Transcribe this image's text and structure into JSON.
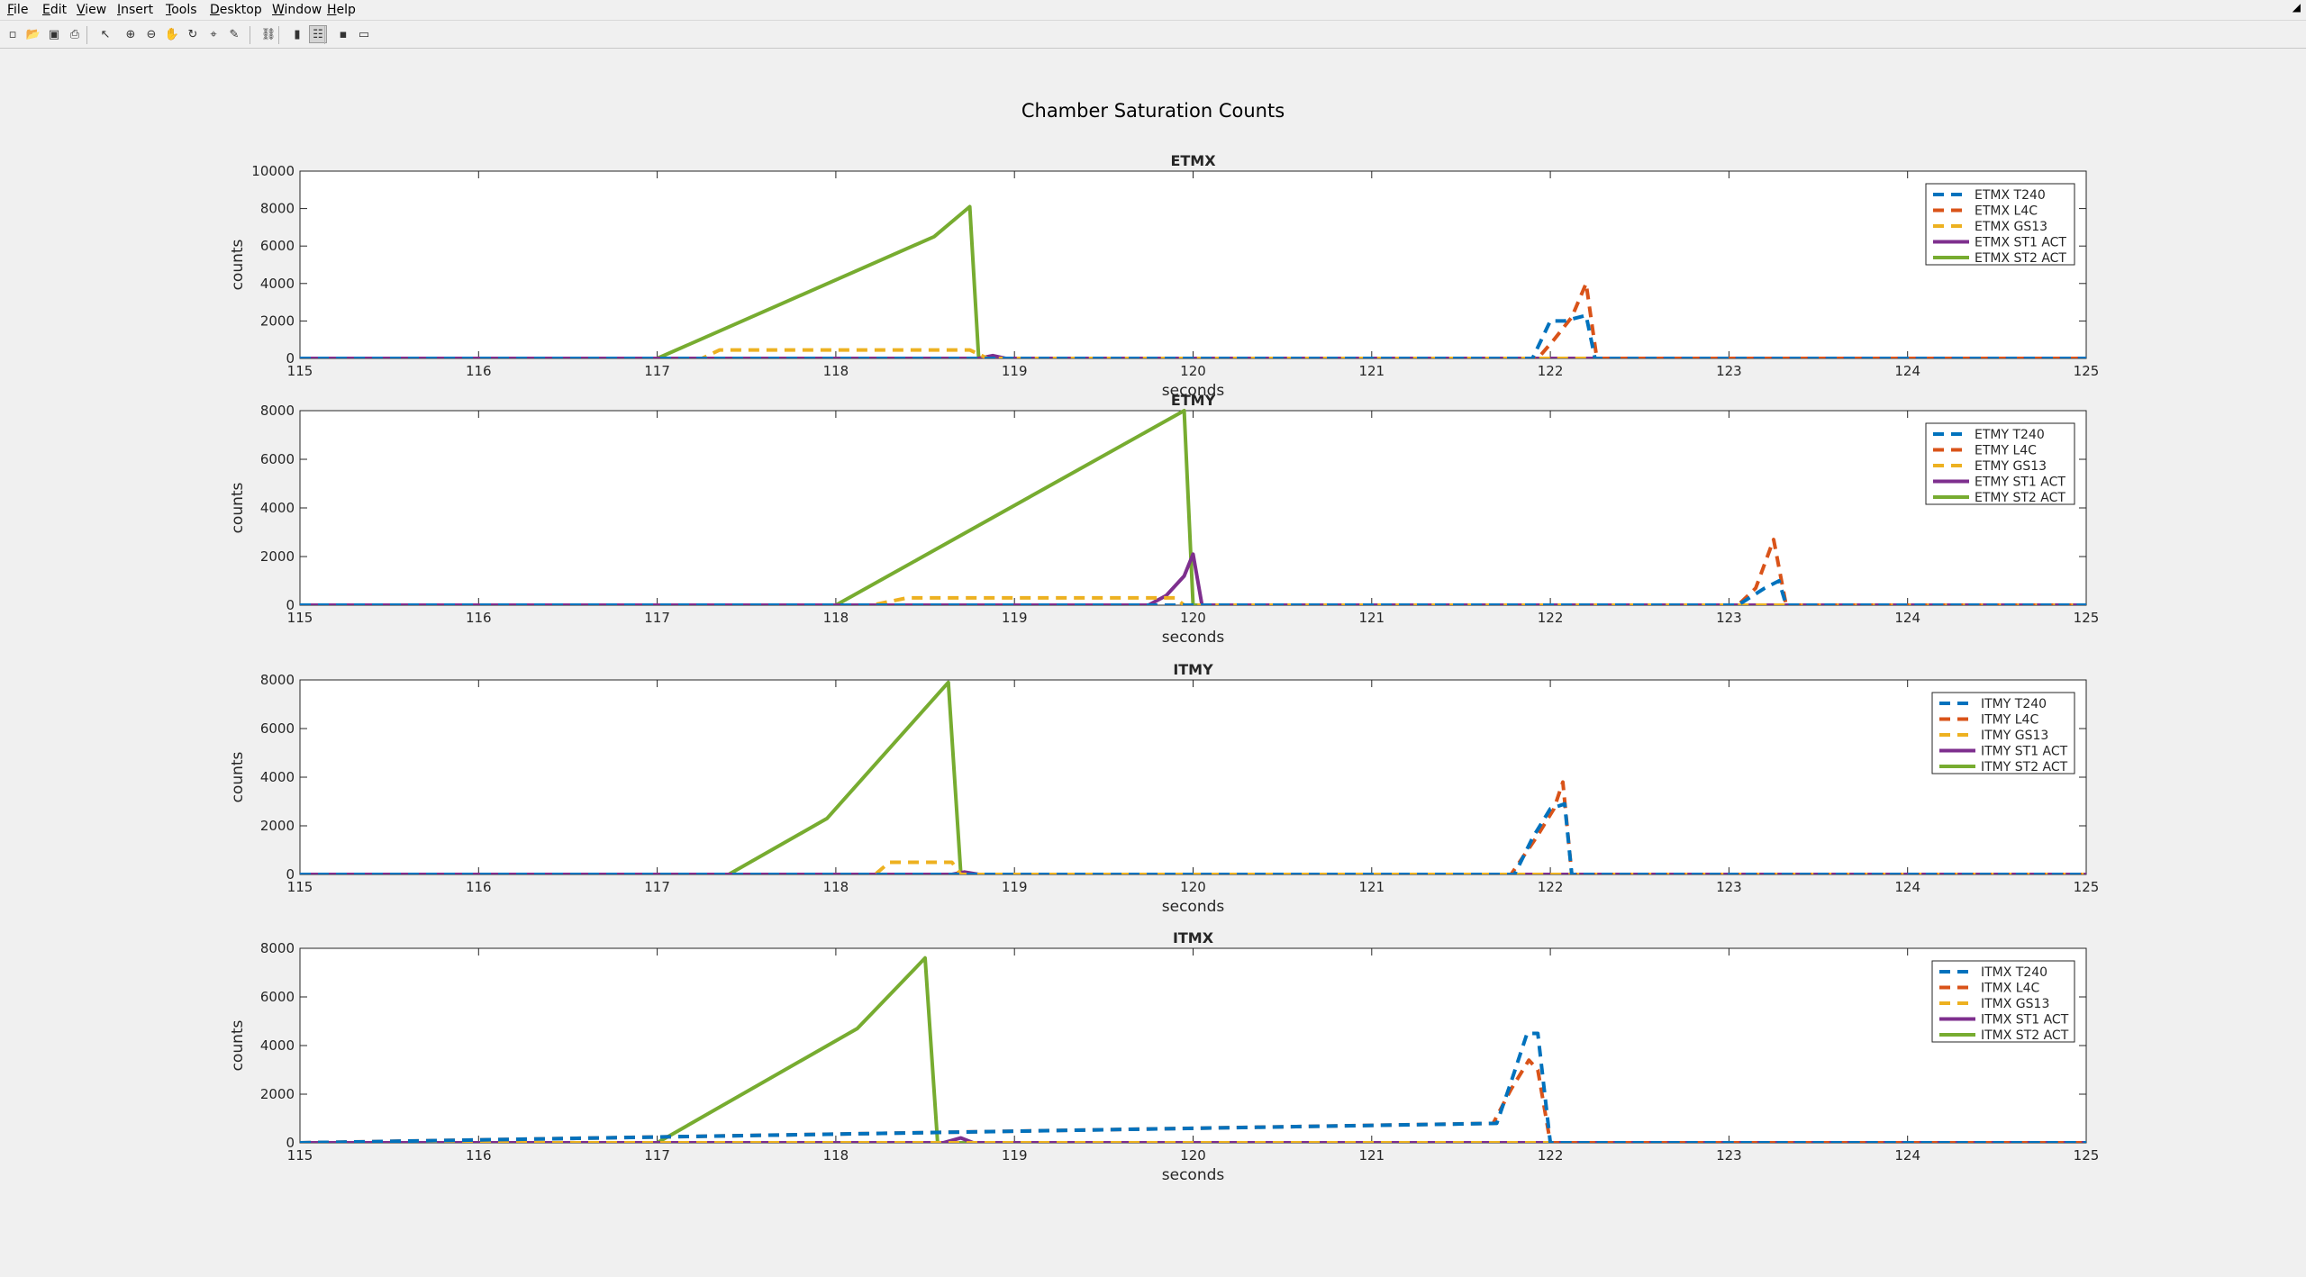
{
  "menubar": {
    "items": [
      "File",
      "Edit",
      "View",
      "Insert",
      "Tools",
      "Desktop",
      "Window",
      "Help"
    ],
    "dock_arrow": "◢"
  },
  "toolbar": {
    "icons": [
      "new-figure-icon",
      "open-file-icon",
      "save-icon",
      "print-icon",
      "pointer-icon",
      "zoom-in-icon",
      "zoom-out-icon",
      "pan-icon",
      "rotate-icon",
      "data-cursor-icon",
      "brush-icon",
      "link-plot-icon",
      "colorbar-icon",
      "legend-icon",
      "hide-tools-icon",
      "show-tools-icon"
    ],
    "glyphs": [
      "▫",
      "📂",
      "▣",
      "⎙",
      "↖",
      "⊕",
      "⊖",
      "✋",
      "↻",
      "⌖",
      "✎",
      "⛓",
      "▮",
      "☷",
      "▪",
      "▭"
    ]
  },
  "figure": {
    "title": "Chamber Saturation Counts"
  },
  "chart_data": [
    {
      "type": "line",
      "title": "ETMX",
      "xlabel": "seconds",
      "ylabel": "counts",
      "xlim": [
        115,
        125
      ],
      "ylim": [
        0,
        10000
      ],
      "xticks": [
        115,
        116,
        117,
        118,
        119,
        120,
        121,
        122,
        123,
        124,
        125
      ],
      "yticks": [
        0,
        2000,
        4000,
        6000,
        8000,
        10000
      ],
      "legend_position": "top-right",
      "series": [
        {
          "name": "ETMX T240",
          "color": "#0072BD",
          "style": "dashed",
          "points": [
            [
              115,
              0
            ],
            [
              121.9,
              0
            ],
            [
              122.0,
              2000
            ],
            [
              122.08,
              2000
            ],
            [
              122.12,
              2100
            ],
            [
              122.2,
              2300
            ],
            [
              122.25,
              0
            ],
            [
              125,
              0
            ]
          ]
        },
        {
          "name": "ETMX L4C",
          "color": "#D95319",
          "style": "dashed",
          "points": [
            [
              115,
              0
            ],
            [
              121.93,
              0
            ],
            [
              122.02,
              1000
            ],
            [
              122.12,
              2200
            ],
            [
              122.2,
              4000
            ],
            [
              122.26,
              0
            ],
            [
              125,
              0
            ]
          ]
        },
        {
          "name": "ETMX GS13",
          "color": "#EDB120",
          "style": "dashed",
          "points": [
            [
              115,
              0
            ],
            [
              117.25,
              0
            ],
            [
              117.35,
              450
            ],
            [
              118.75,
              450
            ],
            [
              118.85,
              0
            ],
            [
              125,
              0
            ]
          ]
        },
        {
          "name": "ETMX ST1 ACT",
          "color": "#7E2F8E",
          "style": "solid",
          "points": [
            [
              115,
              0
            ],
            [
              118.8,
              0
            ],
            [
              118.88,
              150
            ],
            [
              118.95,
              0
            ],
            [
              125,
              0
            ]
          ]
        },
        {
          "name": "ETMX ST2 ACT",
          "color": "#77AC30",
          "style": "solid",
          "points": [
            [
              115,
              0
            ],
            [
              117.0,
              0
            ],
            [
              118.55,
              6500
            ],
            [
              118.75,
              8100
            ],
            [
              118.8,
              0
            ],
            [
              125,
              0
            ]
          ]
        }
      ]
    },
    {
      "type": "line",
      "title": "ETMY",
      "xlabel": "seconds",
      "ylabel": "counts",
      "xlim": [
        115,
        125
      ],
      "ylim": [
        0,
        8000
      ],
      "xticks": [
        115,
        116,
        117,
        118,
        119,
        120,
        121,
        122,
        123,
        124,
        125
      ],
      "yticks": [
        0,
        2000,
        4000,
        6000,
        8000
      ],
      "legend_position": "top-right",
      "series": [
        {
          "name": "ETMY T240",
          "color": "#0072BD",
          "style": "dashed",
          "points": [
            [
              115,
              0
            ],
            [
              123.05,
              0
            ],
            [
              123.2,
              700
            ],
            [
              123.28,
              1000
            ],
            [
              123.32,
              0
            ],
            [
              125,
              0
            ]
          ]
        },
        {
          "name": "ETMY L4C",
          "color": "#D95319",
          "style": "dashed",
          "points": [
            [
              115,
              0
            ],
            [
              123.05,
              0
            ],
            [
              123.15,
              700
            ],
            [
              123.25,
              2700
            ],
            [
              123.32,
              0
            ],
            [
              125,
              0
            ]
          ]
        },
        {
          "name": "ETMY GS13",
          "color": "#EDB120",
          "style": "dashed",
          "points": [
            [
              115,
              0
            ],
            [
              118.2,
              0
            ],
            [
              118.4,
              300
            ],
            [
              119.9,
              300
            ],
            [
              119.95,
              0
            ],
            [
              125,
              0
            ]
          ]
        },
        {
          "name": "ETMY ST1 ACT",
          "color": "#7E2F8E",
          "style": "solid",
          "points": [
            [
              115,
              0
            ],
            [
              119.75,
              0
            ],
            [
              119.85,
              400
            ],
            [
              119.95,
              1200
            ],
            [
              120.0,
              2100
            ],
            [
              120.05,
              0
            ],
            [
              125,
              0
            ]
          ]
        },
        {
          "name": "ETMY ST2 ACT",
          "color": "#77AC30",
          "style": "solid",
          "points": [
            [
              115,
              0
            ],
            [
              118.0,
              0
            ],
            [
              119.95,
              8000
            ],
            [
              120.0,
              0
            ],
            [
              125,
              0
            ]
          ]
        }
      ]
    },
    {
      "type": "line",
      "title": "ITMY",
      "xlabel": "seconds",
      "ylabel": "counts",
      "xlim": [
        115,
        125
      ],
      "ylim": [
        0,
        8000
      ],
      "xticks": [
        115,
        116,
        117,
        118,
        119,
        120,
        121,
        122,
        123,
        124,
        125
      ],
      "yticks": [
        0,
        2000,
        4000,
        6000,
        8000
      ],
      "legend_position": "top-right",
      "series": [
        {
          "name": "ITMY T240",
          "color": "#0072BD",
          "style": "dashed",
          "points": [
            [
              115,
              0
            ],
            [
              121.8,
              0
            ],
            [
              121.9,
              1500
            ],
            [
              122.0,
              2700
            ],
            [
              122.08,
              2900
            ],
            [
              122.12,
              0
            ],
            [
              125,
              0
            ]
          ]
        },
        {
          "name": "ITMY L4C",
          "color": "#D95319",
          "style": "dashed",
          "points": [
            [
              115,
              0
            ],
            [
              121.78,
              0
            ],
            [
              121.92,
              1500
            ],
            [
              122.02,
              2700
            ],
            [
              122.07,
              3800
            ],
            [
              122.12,
              0
            ],
            [
              125,
              0
            ]
          ]
        },
        {
          "name": "ITMY GS13",
          "color": "#EDB120",
          "style": "dashed",
          "points": [
            [
              115,
              0
            ],
            [
              118.22,
              0
            ],
            [
              118.3,
              500
            ],
            [
              118.65,
              500
            ],
            [
              118.7,
              0
            ],
            [
              125,
              0
            ]
          ]
        },
        {
          "name": "ITMY ST1 ACT",
          "color": "#7E2F8E",
          "style": "solid",
          "points": [
            [
              115,
              0
            ],
            [
              118.65,
              0
            ],
            [
              118.72,
              100
            ],
            [
              118.8,
              0
            ],
            [
              125,
              0
            ]
          ]
        },
        {
          "name": "ITMY ST2 ACT",
          "color": "#77AC30",
          "style": "solid",
          "points": [
            [
              115,
              0
            ],
            [
              117.4,
              0
            ],
            [
              117.95,
              2300
            ],
            [
              118.63,
              7900
            ],
            [
              118.7,
              0
            ],
            [
              125,
              0
            ]
          ]
        }
      ]
    },
    {
      "type": "line",
      "title": "ITMX",
      "xlabel": "seconds",
      "ylabel": "counts",
      "xlim": [
        115,
        125
      ],
      "ylim": [
        0,
        8000
      ],
      "xticks": [
        115,
        116,
        117,
        118,
        119,
        120,
        121,
        122,
        123,
        124,
        125
      ],
      "yticks": [
        0,
        2000,
        4000,
        6000,
        8000
      ],
      "legend_position": "top-right",
      "series": [
        {
          "name": "ITMX T240",
          "color": "#0072BD",
          "style": "dashed",
          "points": [
            [
              115,
              0
            ],
            [
              121.7,
              800
            ],
            [
              121.78,
              2500
            ],
            [
              121.87,
              4500
            ],
            [
              121.93,
              4500
            ],
            [
              122.0,
              0
            ],
            [
              125,
              0
            ]
          ]
        },
        {
          "name": "ITMX L4C",
          "color": "#D95319",
          "style": "dashed",
          "points": [
            [
              115,
              0
            ],
            [
              121.68,
              800
            ],
            [
              121.78,
              2200
            ],
            [
              121.88,
              3400
            ],
            [
              121.93,
              3000
            ],
            [
              122.0,
              0
            ],
            [
              125,
              0
            ]
          ]
        },
        {
          "name": "ITMX GS13",
          "color": "#EDB120",
          "style": "dashed",
          "points": [
            [
              115,
              0
            ],
            [
              125,
              0
            ]
          ]
        },
        {
          "name": "ITMX ST1 ACT",
          "color": "#7E2F8E",
          "style": "solid",
          "points": [
            [
              115,
              0
            ],
            [
              118.6,
              0
            ],
            [
              118.7,
              200
            ],
            [
              118.77,
              0
            ],
            [
              125,
              0
            ]
          ]
        },
        {
          "name": "ITMX ST2 ACT",
          "color": "#77AC30",
          "style": "solid",
          "points": [
            [
              115,
              0
            ],
            [
              117.0,
              0
            ],
            [
              118.12,
              4700
            ],
            [
              118.5,
              7600
            ],
            [
              118.57,
              0
            ],
            [
              125,
              0
            ]
          ]
        }
      ]
    }
  ]
}
